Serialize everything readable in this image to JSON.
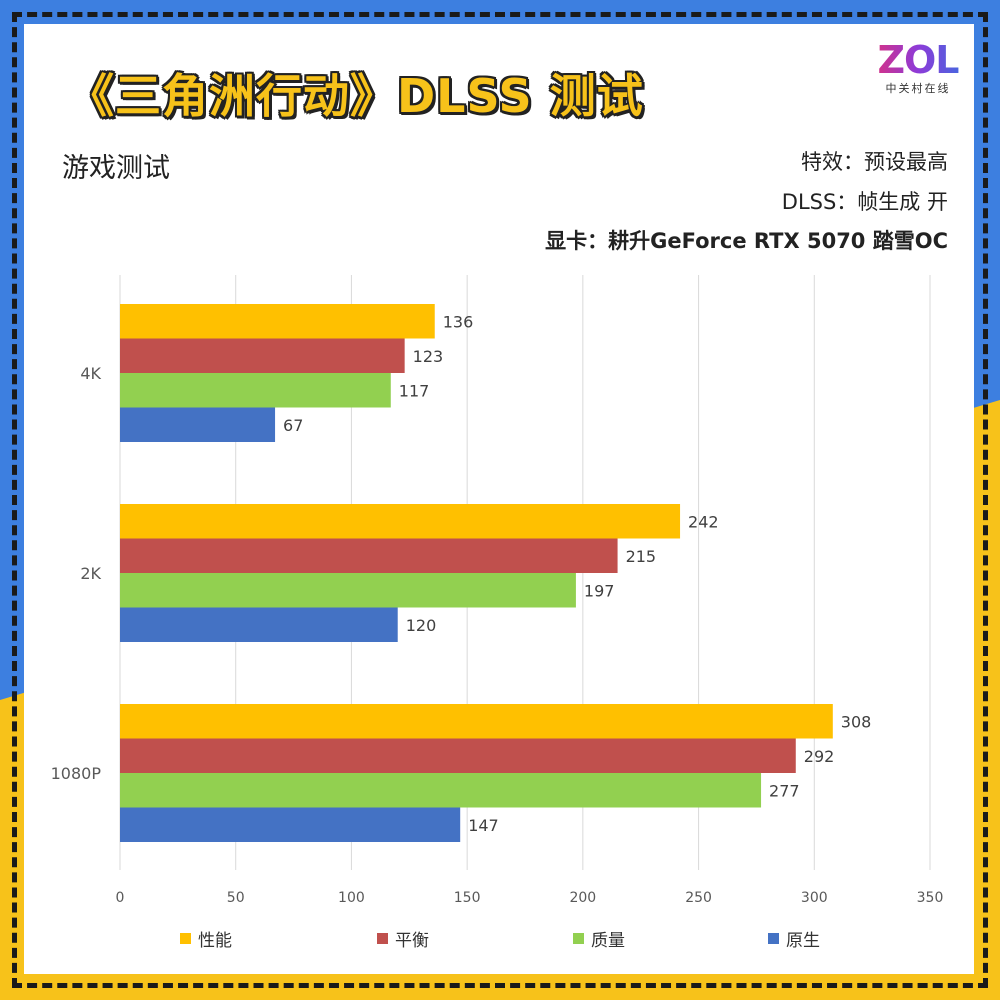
{
  "header": {
    "title": "《三角洲行动》DLSS 测试",
    "logo_text": "ZOL",
    "logo_subtext": "中关村在线",
    "subtitle": "游戏测试",
    "info_lines": [
      "特效：预设最高",
      "DLSS：帧生成 开",
      "显卡：耕升GeForce RTX 5070 踏雪OC"
    ]
  },
  "colors": {
    "frame_blue": "#3d7fe0",
    "frame_yellow": "#f7c21a",
    "title_fill": "#f7c21a"
  },
  "chart_data": {
    "type": "bar",
    "orientation": "horizontal",
    "categories": [
      "4K",
      "2K",
      "1080P"
    ],
    "series": [
      {
        "name": "性能",
        "color": "#ffc000",
        "values": [
          136,
          242,
          308
        ]
      },
      {
        "name": "平衡",
        "color": "#c0504d",
        "values": [
          123,
          215,
          292
        ]
      },
      {
        "name": "质量",
        "color": "#92d050",
        "values": [
          117,
          197,
          277
        ]
      },
      {
        "name": "原生",
        "color": "#4472c4",
        "values": [
          67,
          120,
          147
        ]
      }
    ],
    "xlim": [
      0,
      350
    ],
    "xticks": [
      0,
      50,
      100,
      150,
      200,
      250,
      300,
      350
    ],
    "grid": true,
    "legend_position": "bottom",
    "data_labels": true
  }
}
